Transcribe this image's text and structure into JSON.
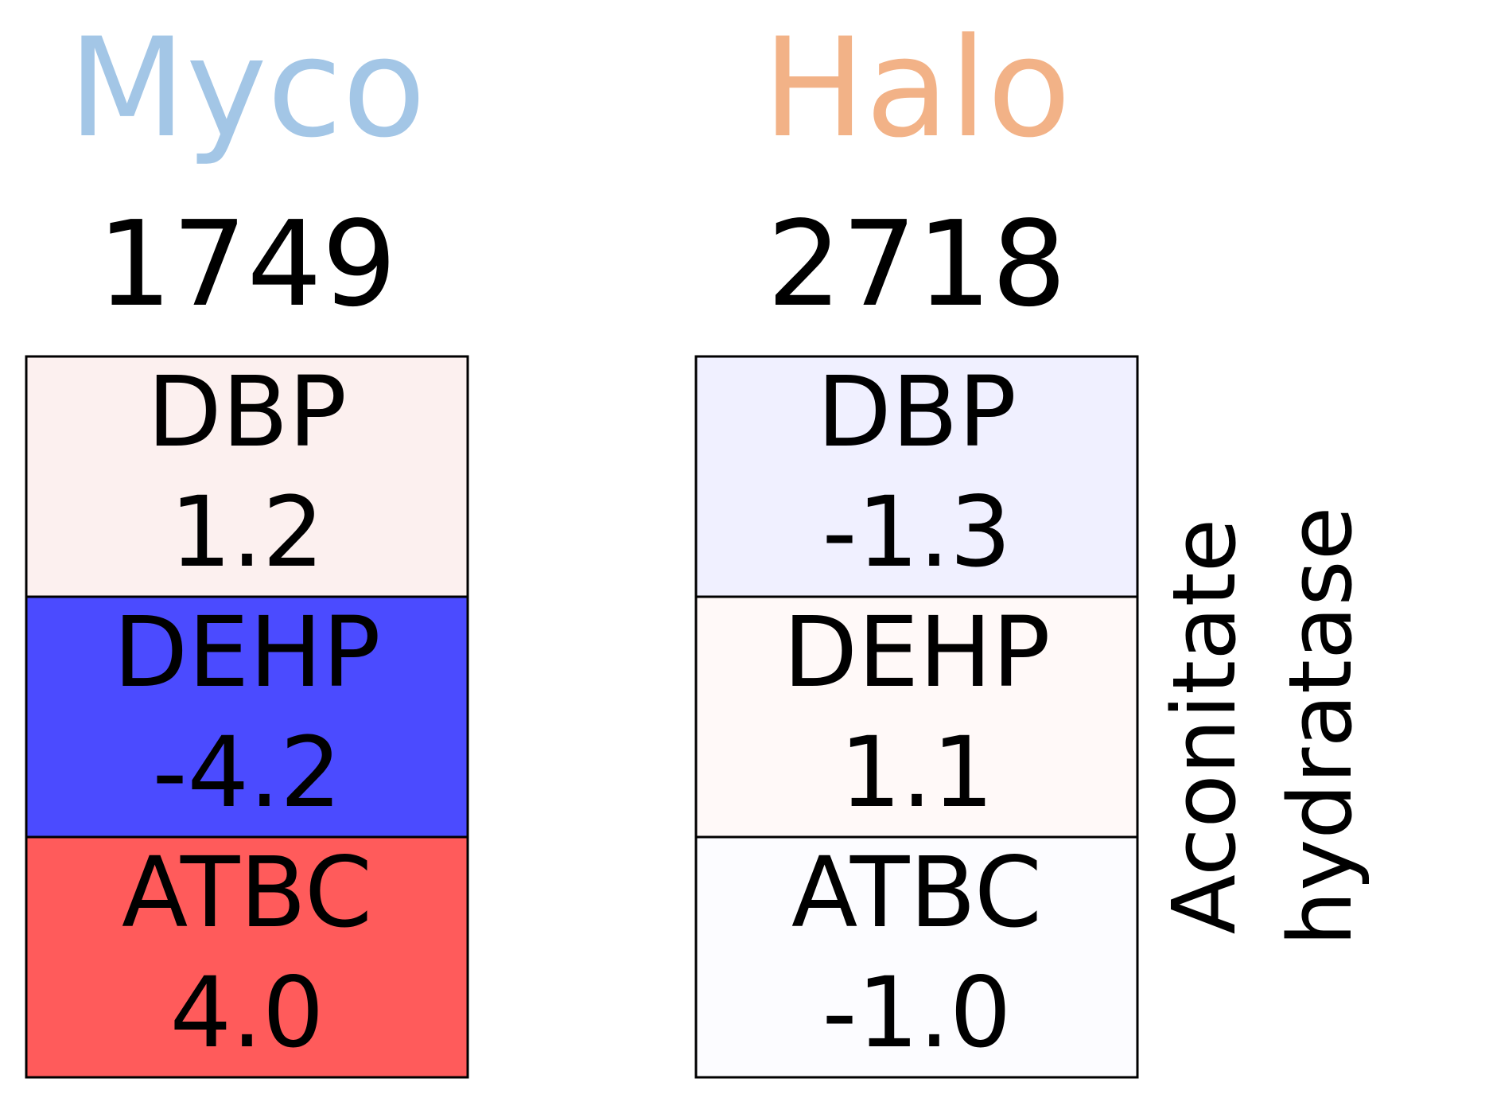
{
  "chart_data": {
    "type": "heatmap",
    "row_label": "Aconitate hydratase",
    "columns": [
      {
        "name": "Myco",
        "name_color": "#a3c6e6",
        "count": "1749",
        "cells": [
          {
            "label": "DBP",
            "value": 1.2,
            "display": "1.2",
            "fill": "#fcf0ef"
          },
          {
            "label": "DEHP",
            "value": -4.2,
            "display": "-4.2",
            "fill": "#4b4bff"
          },
          {
            "label": "ATBC",
            "value": 4.0,
            "display": "4.0",
            "fill": "#ff5b5b"
          }
        ]
      },
      {
        "name": "Halo",
        "name_color": "#f2b287",
        "count": "2718",
        "cells": [
          {
            "label": "DBP",
            "value": -1.3,
            "display": "-1.3",
            "fill": "#f0f0ff"
          },
          {
            "label": "DEHP",
            "value": 1.1,
            "display": "1.1",
            "fill": "#fff9f8"
          },
          {
            "label": "ATBC",
            "value": -1.0,
            "display": "-1.0",
            "fill": "#fcfcff"
          }
        ]
      }
    ]
  }
}
